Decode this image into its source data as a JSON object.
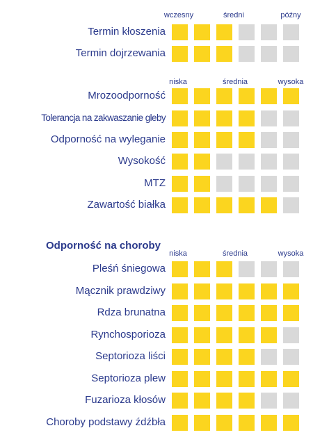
{
  "colors": {
    "filled": "#fbd51f",
    "empty": "#d9d9d9",
    "text": "#2b3a8c"
  },
  "chart_data": [
    {
      "type": "table",
      "max": 6,
      "scale_labels": [
        "wczesny",
        "średni",
        "późny"
      ],
      "rows": [
        {
          "label": "Termin kłoszenia",
          "value": 3
        },
        {
          "label": "Termin dojrzewania",
          "value": 3
        }
      ]
    },
    {
      "type": "table",
      "max": 6,
      "scale_labels": [
        "niska",
        "średnia",
        "wysoka"
      ],
      "rows": [
        {
          "label": "Mrozoodporność",
          "value": 6
        },
        {
          "label": "Tolerancja na zakwaszanie gleby",
          "value": 4
        },
        {
          "label": "Odporność na wyleganie",
          "value": 4
        },
        {
          "label": "Wysokość",
          "value": 2
        },
        {
          "label": "MTZ",
          "value": 2
        },
        {
          "label": "Zawartość białka",
          "value": 5
        }
      ]
    },
    {
      "type": "table",
      "title": "Odporność na choroby",
      "max": 6,
      "scale_labels": [
        "niska",
        "średnia",
        "wysoka"
      ],
      "rows": [
        {
          "label": "Pleśń śniegowa",
          "value": 3
        },
        {
          "label": "Mącznik prawdziwy",
          "value": 6
        },
        {
          "label": "Rdza brunatna",
          "value": 6
        },
        {
          "label": "Rynchosporioza",
          "value": 5
        },
        {
          "label": "Septorioza liści",
          "value": 4
        },
        {
          "label": "Septorioza plew",
          "value": 6
        },
        {
          "label": "Fuzarioza kłosów",
          "value": 4
        },
        {
          "label": "Choroby podstawy źdźbła",
          "value": 6
        }
      ]
    }
  ]
}
